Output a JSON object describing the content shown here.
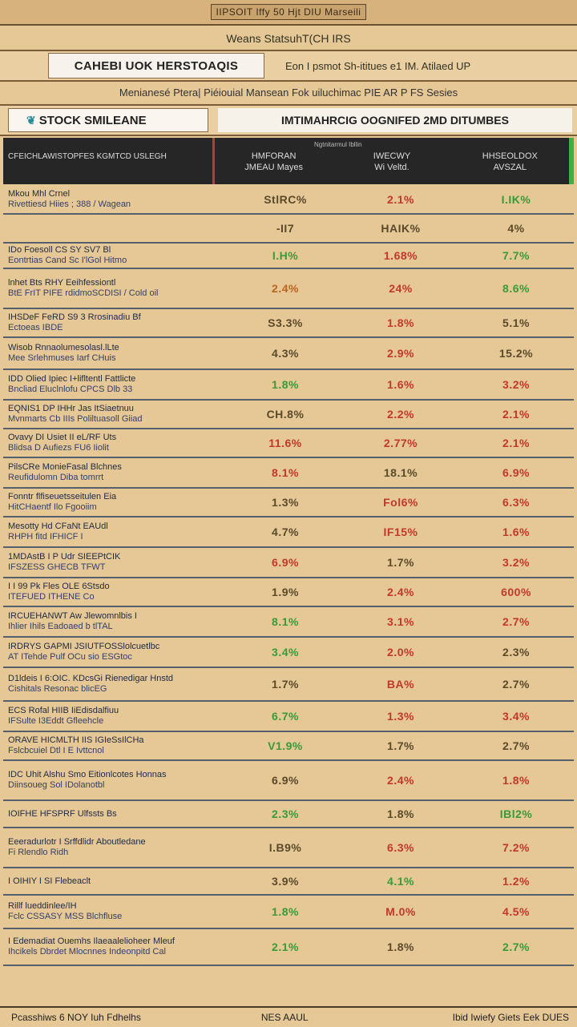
{
  "top_title": "IIPSOIT Iffy 50 Hjt DIU Marseili",
  "header_line_2": "Weans StatsuhT(CH IRS",
  "brand_box": "CAHEBI UOK HERSTOAQIS",
  "brand_right": "Eon I psmot Sh-ititues e1 IM. Atilaed UP",
  "header_line_4": "Menianesé Ptera| Piéiouial Mansean Fok uiluchimac PIE AR P FS Sesies",
  "stock_box": "STOCK SMILEANE",
  "stock_box_icon": "leaf-logo-icon",
  "stock_right": "IMTIMAHRCIG OOGNIFED 2MD DITUMBES",
  "table_header": {
    "label_col": "CFEICHLAWISTOPFES KGMTCD USLEGH",
    "small_top": "Ngtnitarmul Ibllin",
    "col1": [
      "HMFORAN",
      "JMEAU Mayes"
    ],
    "col2": [
      "IWECWY",
      "Wi Veltd."
    ],
    "col3": [
      "HHSEOLDOX",
      "AVSZAL"
    ]
  },
  "rows": [
    {
      "l1": "Mkou Mhl Crnel",
      "l2": "Rivettiesd Hiies ; 388 / Wagean",
      "v": [
        "StlRC%",
        "2.1%",
        "I.IK%"
      ],
      "c": [
        "d",
        "r",
        "g"
      ]
    },
    {
      "l1": "",
      "l2": "",
      "v": [
        "-II7",
        "HAIK%",
        "4%"
      ],
      "c": [
        "d",
        "d",
        "d"
      ]
    },
    {
      "l1": "IDo  Foesoll CS SY  SV7 Bl",
      "l2": "Eontrtias  Cand Sc I'lGol Hitmo",
      "v": [
        "I.H%",
        "1.68%",
        "7.7%"
      ],
      "c": [
        "g",
        "r",
        "g"
      ]
    },
    {
      "l1": "lnhet Bts RHY Eeihfessiontl",
      "l2": "BtE FrIT  PIFE rdidmoSCDISI / Cold oil",
      "v": [
        "2.4%",
        "24%",
        "8.6%"
      ],
      "c": [
        "o",
        "r",
        "g"
      ]
    },
    {
      "l1": "IHSDeF  FeRD S9 3 Rrosinadiu Bf",
      "l2": "Ectoeas  IBDE",
      "v": [
        "S3.3%",
        "1.8%",
        "5.1%"
      ],
      "c": [
        "d",
        "r",
        "d"
      ]
    },
    {
      "l1": "Wisob Rnnaolumesolasl.lLte",
      "l2": "Mee  Srlehmuses Iarf CHuis",
      "v": [
        "4.3%",
        "2.9%",
        "15.2%"
      ],
      "c": [
        "d",
        "r",
        "d"
      ]
    },
    {
      "l1": "IDD Olied Ipiec  I+lifltentl Fattlicte",
      "l2": "Bncliad Eluclnlofu  CPCS Dlb 33",
      "v": [
        "1.8%",
        "1.6%",
        "3.2%"
      ],
      "c": [
        "g",
        "r",
        "r"
      ]
    },
    {
      "l1": "EQNIS1 DP IHHr Jas ItSiaetnuu",
      "l2": "Mvnmarts Cb IIIs Poliltuasoll  Giiad",
      "v": [
        "CH.8%",
        "2.2%",
        "2.1%"
      ],
      "c": [
        "d",
        "r",
        "r"
      ]
    },
    {
      "l1": "Ovavy  DI Usiet  II eL/RF  Uts",
      "l2": "Blidsa  D Aufiezs  FU6  Iiolit",
      "v": [
        "11.6%",
        "2.77%",
        "2.1%"
      ],
      "c": [
        "r",
        "r",
        "r"
      ]
    },
    {
      "l1": "PilsCRe MonieFasal Blchnes",
      "l2": "Reufidulomn  Diba tomrrt",
      "v": [
        "8.1%",
        "18.1%",
        "6.9%"
      ],
      "c": [
        "r",
        "d",
        "r"
      ]
    },
    {
      "l1": "Fonntr flfiseuetsseitulen Eia",
      "l2": "HitCHaentf Ilo  Fgooiim",
      "v": [
        "1.3%",
        "Fol6%",
        "6.3%"
      ],
      "c": [
        "d",
        "r",
        "r"
      ]
    },
    {
      "l1": "Mesotty Hd  CFaNt EAUdl",
      "l2": "RHPH fitd  IFHICF I",
      "v": [
        "4.7%",
        "IF15%",
        "1.6%"
      ],
      "c": [
        "d",
        "r",
        "r"
      ]
    },
    {
      "l1": "1MDAstB  I P Udr  SIEEPtCIK",
      "l2": "IFSZESS   GHECB TFWT",
      "v": [
        "6.9%",
        "1.7%",
        "3.2%"
      ],
      "c": [
        "r",
        "d",
        "r"
      ]
    },
    {
      "l1": "I I 99 Pk Fles  OLE 6Stsdo",
      "l2": "ITEFUED  ITHENE Co",
      "v": [
        "1.9%",
        "2.4%",
        "600%"
      ],
      "c": [
        "d",
        "r",
        "r"
      ]
    },
    {
      "l1": "IRCUEHANWT Aw  Jlewomnlbis  I",
      "l2": "Ihlier Ihils  Eadoaed  b tlTAL",
      "v": [
        "8.1%",
        "3.1%",
        "2.7%"
      ],
      "c": [
        "g",
        "r",
        "r"
      ]
    },
    {
      "l1": "IRDRYS  GAPMI JSIUTFOSSlolcuetlbc",
      "l2": "AT ITehde  Pulf  OCu sio ESGtoc",
      "v": [
        "3.4%",
        "2.0%",
        "2.3%"
      ],
      "c": [
        "g",
        "r",
        "d"
      ]
    },
    {
      "l1": "D1ldeis I 6:OIC.  KDcsGi  Rienedigar Hnstd",
      "l2": "Cishitals  Resonac blicEG",
      "v": [
        "1.7%",
        "BA%",
        "2.7%"
      ],
      "c": [
        "d",
        "r",
        "d"
      ]
    },
    {
      "l1": "ECS Rofal  HIIB   IiEdisdalfiuu",
      "l2": "IFSulte  I3Eddt  Gfleehcle",
      "v": [
        "6.7%",
        "1.3%",
        "3.4%"
      ],
      "c": [
        "g",
        "r",
        "r"
      ]
    },
    {
      "l1": "ORAVE HICMLTH  IIS  IGIeSsIlCHa",
      "l2": "Fslcbcuiel Dtl  I E  Ivttcnol",
      "v": [
        "V1.9%",
        "1.7%",
        "2.7%"
      ],
      "c": [
        "g",
        "d",
        "d"
      ]
    },
    {
      "l1": "IDC  Uhit Alshu Smo  Eitionlcotes Honnas",
      "l2": "Diinsoueg  Sol  IDolanotbl",
      "v": [
        "6.9%",
        "2.4%",
        "1.8%"
      ],
      "c": [
        "d",
        "r",
        "r"
      ]
    },
    {
      "l1": "IOIFHE  HFSPRF  Ulfssts  Bs",
      "l2": "",
      "v": [
        "2.3%",
        "1.8%",
        "IBl2%"
      ],
      "c": [
        "g",
        "d",
        "g"
      ]
    },
    {
      "l1": "Eeeradurlotr  I  Srffdlidr  Aboutledane",
      "l2": "Fi Rlendlo  Ridh",
      "v": [
        "I.B9%",
        "6.3%",
        "7.2%"
      ],
      "c": [
        "d",
        "r",
        "r"
      ]
    },
    {
      "l1": "I OIHIY  I  SI  Flebeaclt",
      "l2": "",
      "v": [
        "3.9%",
        "4.1%",
        "1.2%"
      ],
      "c": [
        "d",
        "g",
        "r"
      ]
    },
    {
      "l1": "Rillf  lueddinlee/IH",
      "l2": "Fclc  CSSASY  MSS  Blchfluse",
      "v": [
        "1.8%",
        "M.0%",
        "4.5%"
      ],
      "c": [
        "g",
        "r",
        "r"
      ]
    },
    {
      "l1": "I Edemadiat Ouemhs  Ilaeaalelioheer  Mleuf",
      "l2": "Ihcikels Dbrdet  Mlocnnes  Indeonpitd Cal",
      "v": [
        "2.1%",
        "1.8%",
        "2.7%"
      ],
      "c": [
        "g",
        "d",
        "g"
      ]
    }
  ],
  "bottom": {
    "left": "Pcasshiws 6 NOY Iuh Fdhelhs",
    "mid": "NES AAUL",
    "right": "Ibid Iwiefy Giets Eek  DUES"
  }
}
